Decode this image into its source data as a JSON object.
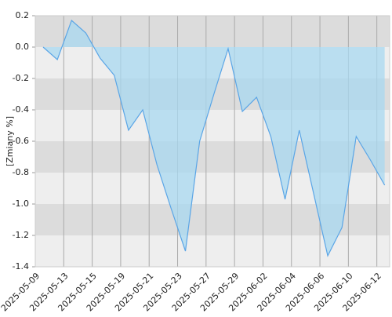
{
  "chart_data": {
    "type": "area",
    "y_label": "[Zmiany %]",
    "x": [
      0.55,
      1.55,
      2.55,
      3.55,
      4.55,
      5.55,
      6.55,
      7.55,
      8.55,
      9.55,
      10.55,
      11.55,
      12.55,
      13.55,
      14.55,
      15.55,
      16.55,
      17.55,
      18.55,
      19.55,
      20.55,
      21.55,
      22.55,
      23.55,
      24.55
    ],
    "values": [
      0,
      -0.08,
      0.17,
      0.09,
      -0.07,
      -0.18,
      -0.53,
      -0.4,
      -0.75,
      -1.03,
      -1.3,
      -0.6,
      -0.3,
      -0.01,
      -0.41,
      -0.32,
      -0.57,
      -0.97,
      -0.53,
      -0.93,
      -1.33,
      -1.15,
      -0.57,
      -0.72,
      -0.88
    ],
    "color": "#5aa5e6",
    "fill": "#a8d8f0",
    "xlim": [
      0,
      24.9
    ],
    "xticks": [
      {
        "value": 0,
        "label": "2025-05-09"
      },
      {
        "value": 2,
        "label": "2025-05-13"
      },
      {
        "value": 4,
        "label": "2025-05-15"
      },
      {
        "value": 6,
        "label": "2025-05-19"
      },
      {
        "value": 8,
        "label": "2025-05-21"
      },
      {
        "value": 10,
        "label": "2025-05-23"
      },
      {
        "value": 12,
        "label": "2025-05-27"
      },
      {
        "value": 14,
        "label": "2025-05-29"
      },
      {
        "value": 16,
        "label": "2025-06-02"
      },
      {
        "value": 18,
        "label": "2025-06-04"
      },
      {
        "value": 20,
        "label": "2025-06-06"
      },
      {
        "value": 22,
        "label": "2025-06-10"
      },
      {
        "value": 24,
        "label": "2025-06-12"
      }
    ],
    "ylim": [
      -1.4,
      0.2
    ],
    "yticks": [
      0.2,
      {
        "value": 0,
        "label": "0.0"
      },
      -0.2,
      -0.4,
      -0.6,
      -0.8,
      {
        "value": -1,
        "label": "-1.0"
      },
      -1.2,
      -1.4
    ],
    "grid": true
  }
}
